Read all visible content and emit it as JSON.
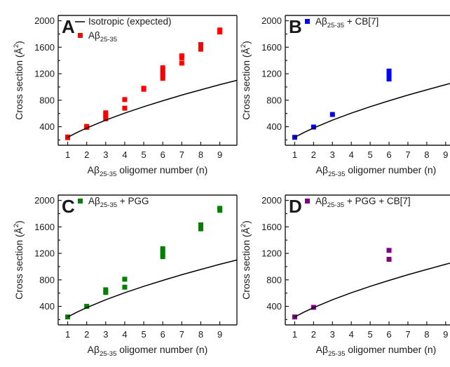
{
  "chart_data": [
    {
      "panel": "A",
      "type": "scatter",
      "xlabel": {
        "base": "Aβ",
        "sub": "25-35",
        "rest": " oligomer number (n)"
      },
      "ylabel": {
        "base": "Cross section (Å",
        "sup": "2",
        "rest": ")"
      },
      "xticks": [
        1,
        2,
        3,
        4,
        5,
        6,
        7,
        8,
        9
      ],
      "yticks": [
        400,
        800,
        1200,
        1600,
        2000
      ],
      "xlim": [
        0.5,
        9.9
      ],
      "ylim": [
        120,
        2080
      ],
      "legend": [
        {
          "kind": "line",
          "label": {
            "base": "Isotropic (expected)",
            "sub": "",
            "rest": ""
          }
        },
        {
          "kind": "marker",
          "color": "#ff0000",
          "label": {
            "base": "Aβ",
            "sub": "25-35",
            "rest": ""
          }
        }
      ],
      "series": [
        {
          "type": "scatter",
          "color": "#ff0000",
          "points": [
            [
              1,
              235
            ],
            [
              1,
              245
            ],
            [
              2,
              390
            ],
            [
              2,
              405
            ],
            [
              3,
              520
            ],
            [
              3,
              550
            ],
            [
              3,
              580
            ],
            [
              3,
              610
            ],
            [
              4,
              680
            ],
            [
              4,
              810
            ],
            [
              5,
              965
            ],
            [
              5,
              980
            ],
            [
              6,
              1130
            ],
            [
              6,
              1170
            ],
            [
              6,
              1210
            ],
            [
              6,
              1250
            ],
            [
              6,
              1290
            ],
            [
              7,
              1360
            ],
            [
              7,
              1440
            ],
            [
              7,
              1470
            ],
            [
              8,
              1570
            ],
            [
              8,
              1640
            ],
            [
              9,
              1830
            ],
            [
              9,
              1860
            ]
          ]
        },
        {
          "type": "line",
          "color": "#000000",
          "name": "Isotropic (expected)",
          "points": [
            [
              1,
              240
            ],
            [
              1.5,
              314
            ],
            [
              2,
              381
            ],
            [
              3,
              499
            ],
            [
              4,
              605
            ],
            [
              5,
              702
            ],
            [
              6,
              792
            ],
            [
              7,
              877
            ],
            [
              8,
              957
            ],
            [
              9,
              1035
            ],
            [
              9.9,
              1100
            ]
          ]
        }
      ]
    },
    {
      "panel": "B",
      "type": "scatter",
      "xlabel": {
        "base": "Aβ",
        "sub": "25-35",
        "rest": " oligomer number (n)"
      },
      "ylabel": {
        "base": "Cross section (Å",
        "sup": "2",
        "rest": ")"
      },
      "xticks": [
        1,
        2,
        3,
        4,
        5,
        6,
        7,
        8,
        9
      ],
      "yticks": [
        400,
        800,
        1200,
        1600,
        2000
      ],
      "xlim": [
        0.5,
        9.9
      ],
      "ylim": [
        120,
        2080
      ],
      "legend": [
        {
          "kind": "marker",
          "color": "#0000ff",
          "label": {
            "base": "Aβ",
            "sub": "25-35",
            "rest": " + CB[7]"
          }
        }
      ],
      "series": [
        {
          "type": "scatter",
          "color": "#0000ff",
          "points": [
            [
              1,
              240
            ],
            [
              2,
              395
            ],
            [
              3,
              585
            ],
            [
              6,
              1120
            ],
            [
              6,
              1160
            ],
            [
              6,
              1200
            ],
            [
              6,
              1240
            ]
          ]
        },
        {
          "type": "line",
          "color": "#000000",
          "points": [
            [
              1,
              240
            ],
            [
              1.5,
              314
            ],
            [
              2,
              381
            ],
            [
              3,
              499
            ],
            [
              4,
              605
            ],
            [
              5,
              702
            ],
            [
              6,
              792
            ],
            [
              7,
              877
            ],
            [
              8,
              957
            ],
            [
              9,
              1035
            ],
            [
              9.9,
              1100
            ]
          ]
        }
      ]
    },
    {
      "panel": "C",
      "type": "scatter",
      "xlabel": {
        "base": "Aβ",
        "sub": "25-35",
        "rest": " oligomer number (n)"
      },
      "ylabel": {
        "base": "Cross section (Å",
        "sup": "2",
        "rest": ")"
      },
      "xticks": [
        1,
        2,
        3,
        4,
        5,
        6,
        7,
        8,
        9
      ],
      "yticks": [
        400,
        800,
        1200,
        1600,
        2000
      ],
      "xlim": [
        0.5,
        9.9
      ],
      "ylim": [
        120,
        2080
      ],
      "legend": [
        {
          "kind": "marker",
          "color": "#008000",
          "label": {
            "base": "Aβ",
            "sub": "25-35",
            "rest": " + PGG"
          }
        }
      ],
      "series": [
        {
          "type": "scatter",
          "color": "#008000",
          "points": [
            [
              1,
              240
            ],
            [
              2,
              400
            ],
            [
              3,
              610
            ],
            [
              3,
              650
            ],
            [
              4,
              690
            ],
            [
              4,
              810
            ],
            [
              6,
              1150
            ],
            [
              6,
              1190
            ],
            [
              6,
              1230
            ],
            [
              6,
              1270
            ],
            [
              8,
              1570
            ],
            [
              8,
              1630
            ],
            [
              9,
              1850
            ],
            [
              9,
              1880
            ]
          ]
        },
        {
          "type": "line",
          "color": "#000000",
          "points": [
            [
              1,
              240
            ],
            [
              1.5,
              314
            ],
            [
              2,
              381
            ],
            [
              3,
              499
            ],
            [
              4,
              605
            ],
            [
              5,
              702
            ],
            [
              6,
              792
            ],
            [
              7,
              877
            ],
            [
              8,
              957
            ],
            [
              9,
              1035
            ],
            [
              9.9,
              1100
            ]
          ]
        }
      ]
    },
    {
      "panel": "D",
      "type": "scatter",
      "xlabel": {
        "base": "Aβ",
        "sub": "25-35",
        "rest": " oligomer number (n)"
      },
      "ylabel": {
        "base": "Cross section (Å",
        "sup": "2",
        "rest": ")"
      },
      "xticks": [
        1,
        2,
        3,
        4,
        5,
        6,
        7,
        8,
        9
      ],
      "yticks": [
        400,
        800,
        1200,
        1600,
        2000
      ],
      "xlim": [
        0.5,
        9.9
      ],
      "ylim": [
        120,
        2080
      ],
      "legend": [
        {
          "kind": "marker",
          "color": "#800080",
          "label": {
            "base": "Aβ",
            "sub": "25-35",
            "rest": " + PGG + CB[7]"
          }
        }
      ],
      "series": [
        {
          "type": "scatter",
          "color": "#800080",
          "points": [
            [
              1,
              240
            ],
            [
              2,
              385
            ],
            [
              6,
              1110
            ],
            [
              6,
              1245
            ]
          ]
        },
        {
          "type": "line",
          "color": "#000000",
          "points": [
            [
              1,
              240
            ],
            [
              1.5,
              314
            ],
            [
              2,
              381
            ],
            [
              3,
              499
            ],
            [
              4,
              605
            ],
            [
              5,
              702
            ],
            [
              6,
              792
            ],
            [
              7,
              877
            ],
            [
              8,
              957
            ],
            [
              9,
              1035
            ],
            [
              9.9,
              1100
            ]
          ]
        }
      ]
    }
  ]
}
